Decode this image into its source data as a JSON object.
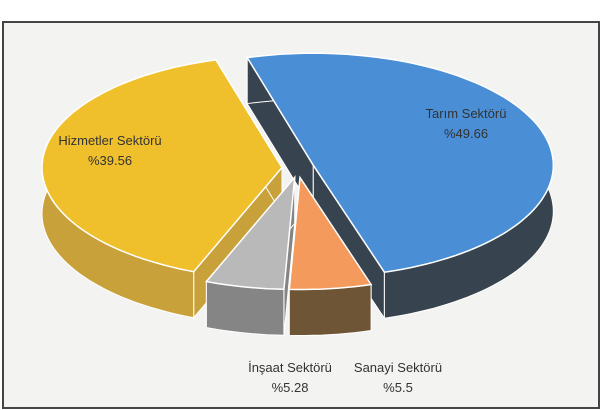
{
  "chart_data": {
    "type": "pie3d",
    "categories": [
      "Tarım Sektörü",
      "Sanayi Sektörü",
      "İnşaat Sektörü",
      "Hizmetler Sektörü"
    ],
    "values": [
      49.66,
      5.5,
      5.28,
      39.56
    ],
    "value_labels": [
      "%49.66",
      "%5.5",
      "%5.28",
      "%39.56"
    ],
    "colors": [
      "#4a8fd6",
      "#f49a5c",
      "#b9b9b9",
      "#efc02c"
    ],
    "side_colors": [
      "#37434e",
      "#6e5536",
      "#858585",
      "#c9a13a"
    ]
  }
}
